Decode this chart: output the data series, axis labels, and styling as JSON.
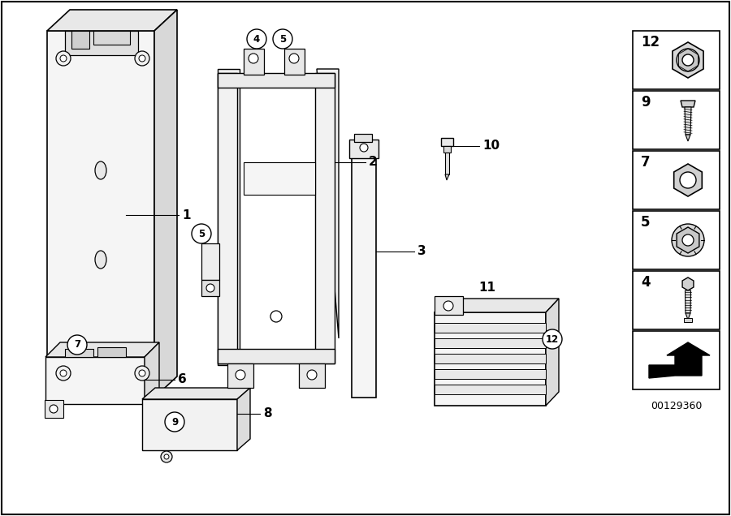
{
  "background_color": "#ffffff",
  "diagram_id": "00129360",
  "fig_width": 9.0,
  "fig_height": 6.36
}
